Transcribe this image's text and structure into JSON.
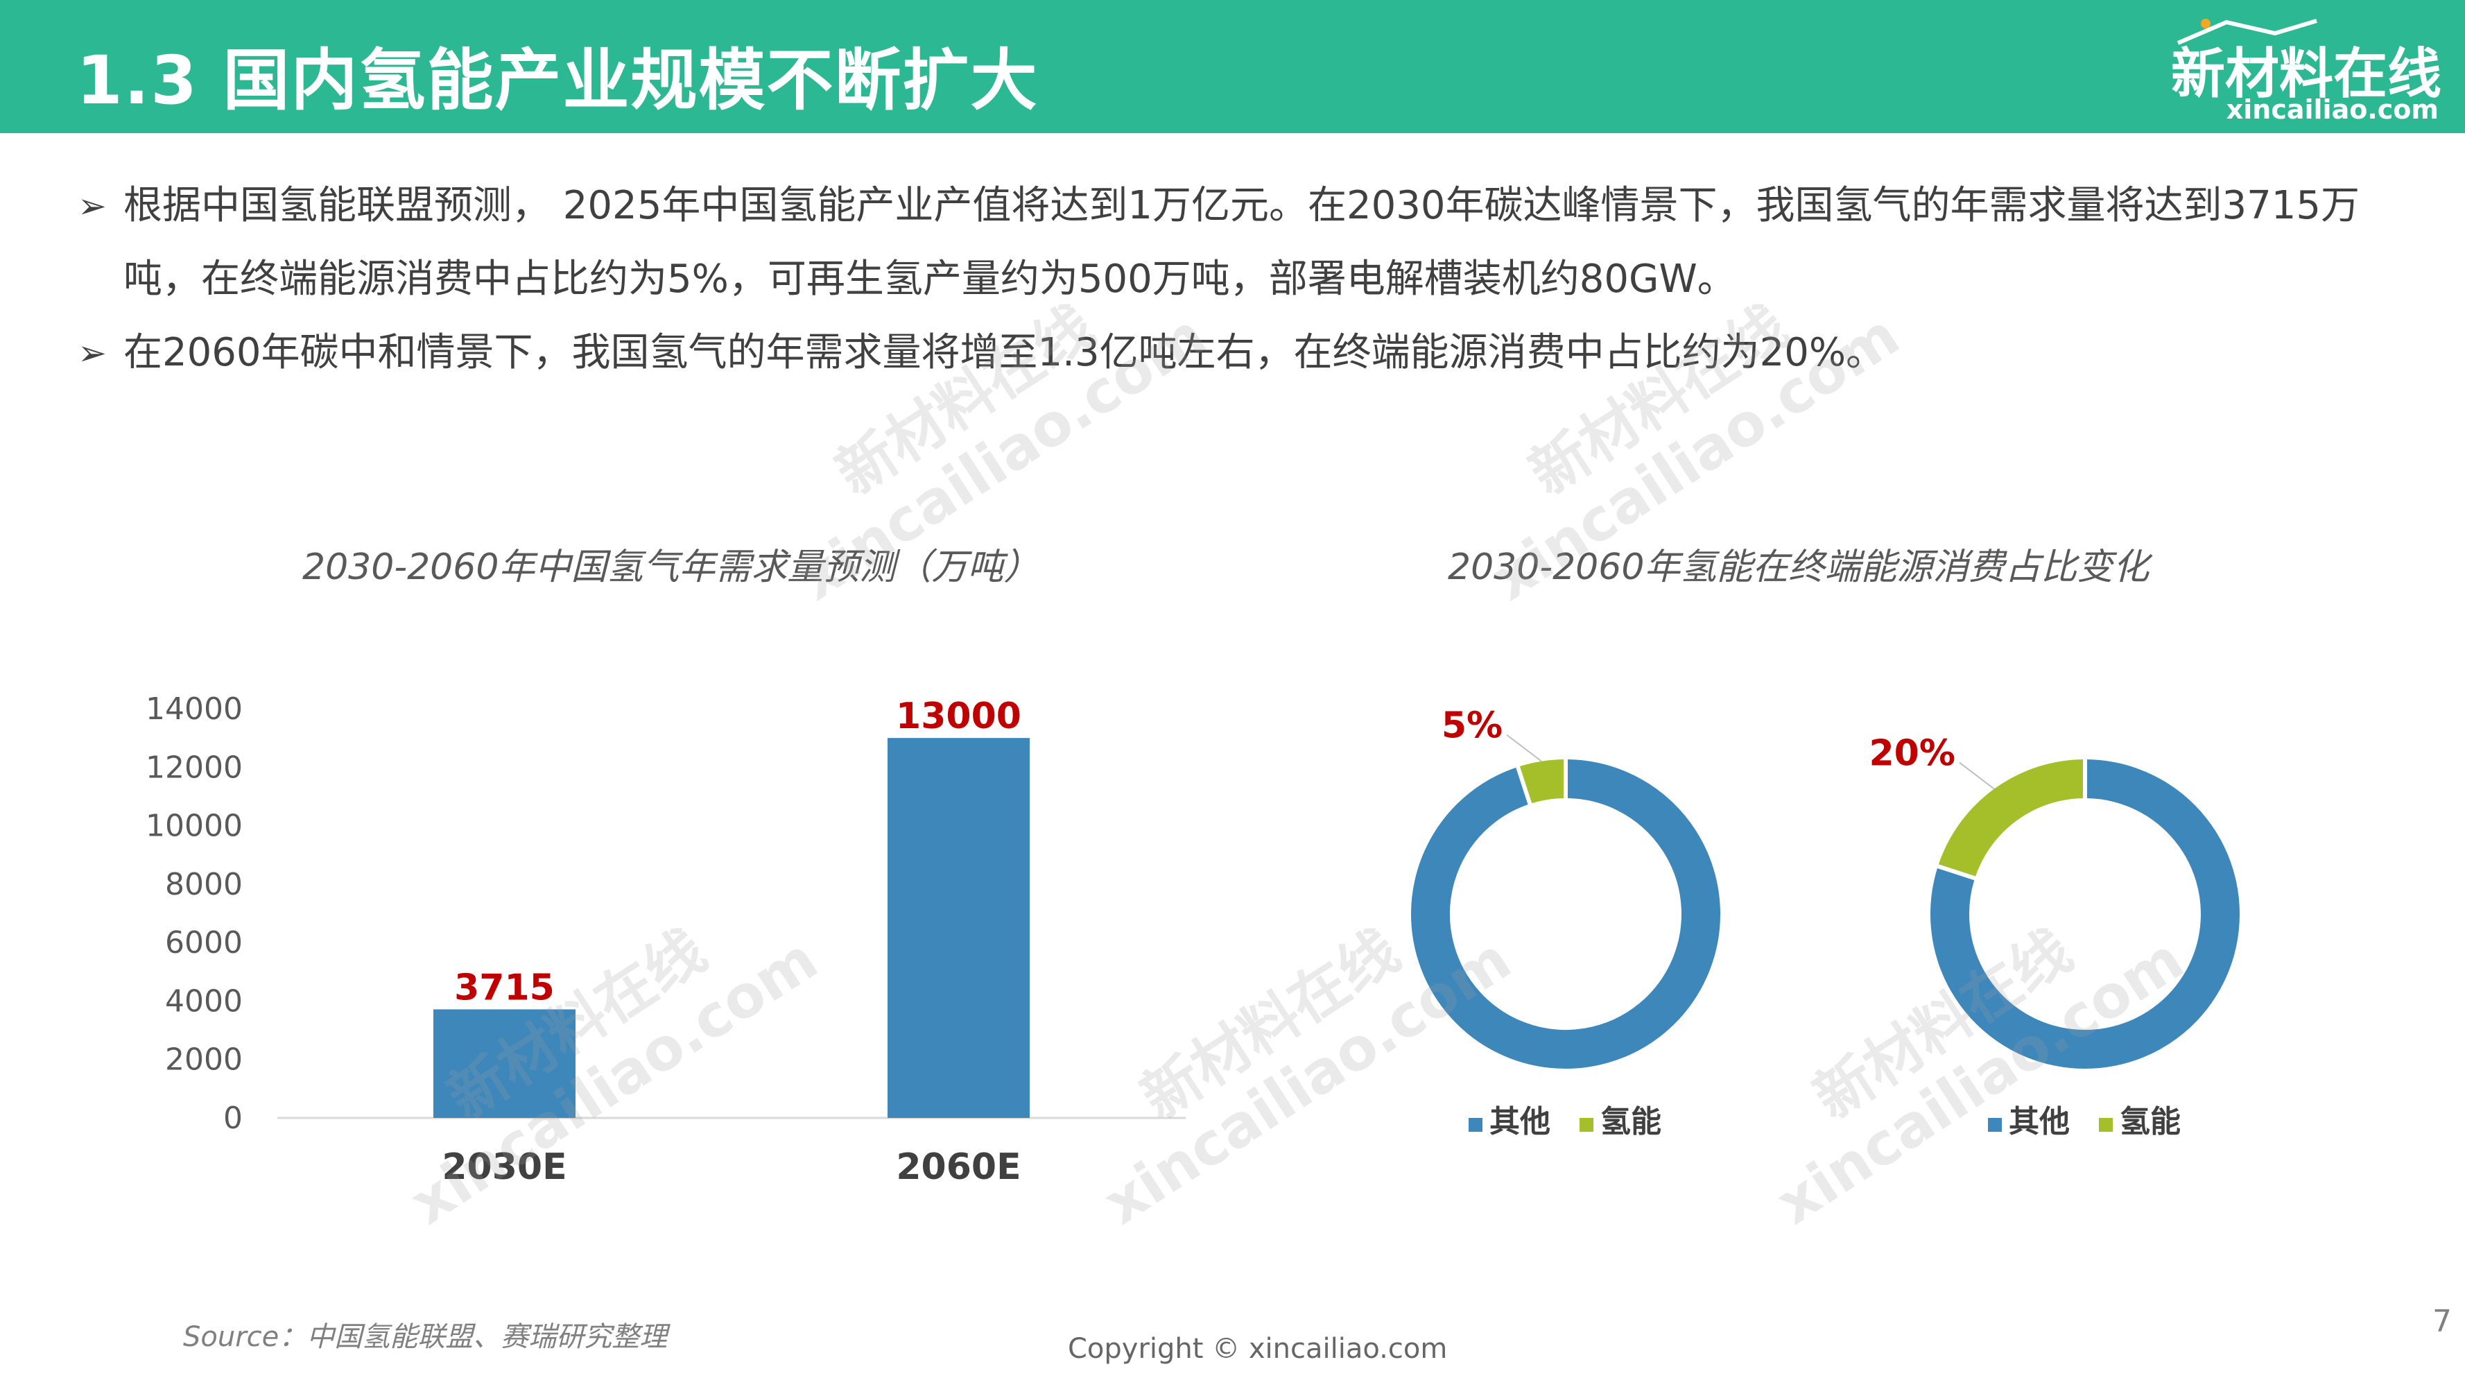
{
  "header": {
    "title": "1.3 国内氢能产业规模不断扩大",
    "logo_cn": "新材料在线",
    "logo_en": "xincailiao.com",
    "bg_color": "#2db894"
  },
  "bullets": [
    "根据中国氢能联盟预测， 2025年中国氢能产业产值将达到1万亿元。在2030年碳达峰情景下，我国氢气的年需求量将达到3715万吨，在终端能源消费中占比约为5%，可再生氢产量约为500万吨，部署电解槽装机约80GW。",
    "在2060年碳中和情景下，我国氢气的年需求量将增至1.3亿吨左右，在终端能源消费中占比约为20%。"
  ],
  "bullet_marker": "➢",
  "watermark": {
    "cn": "新材料在线",
    "en": "xincailiao.com"
  },
  "chart_data": [
    {
      "type": "bar",
      "title": "2030-2060年中国氢气年需求量预测（万吨）",
      "categories": [
        "2030E",
        "2060E"
      ],
      "values": [
        3715,
        13000
      ],
      "data_labels": [
        "3715",
        "13000"
      ],
      "ylim": [
        0,
        14000
      ],
      "yticks": [
        "0",
        "2000",
        "4000",
        "6000",
        "8000",
        "10000",
        "12000",
        "14000"
      ],
      "grid": false,
      "color": "#3d87bb"
    },
    {
      "type": "pie",
      "title": "2030-2060年氢能在终端能源消费占比变化",
      "donuts": [
        {
          "slices": [
            {
              "name": "其他",
              "value": 95,
              "color": "#3d87bb"
            },
            {
              "name": "氢能",
              "value": 5,
              "color": "#a5bf2a"
            }
          ],
          "label": "5%"
        },
        {
          "slices": [
            {
              "name": "其他",
              "value": 80,
              "color": "#3d87bb"
            },
            {
              "name": "氢能",
              "value": 20,
              "color": "#a5bf2a"
            }
          ],
          "label": "20%"
        }
      ],
      "legend": [
        "其他",
        "氢能"
      ],
      "legend_position": "bottom"
    }
  ],
  "footer": {
    "source": "Source：中国氢能联盟、赛瑞研究整理",
    "copyright": "Copyright © xincailiao.com",
    "page_number": "7"
  }
}
